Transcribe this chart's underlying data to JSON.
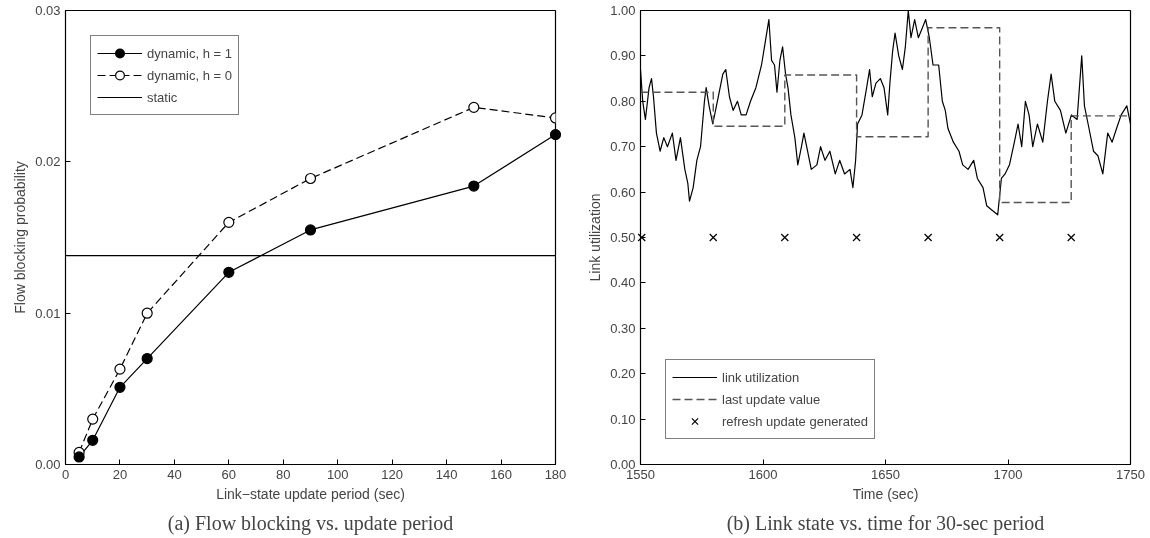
{
  "chart_data": [
    {
      "type": "line",
      "title": "(a) Flow blocking vs. update period",
      "xlabel": "Link−state update period (sec)",
      "ylabel": "Flow blocking probability",
      "x": [
        5,
        10,
        20,
        30,
        60,
        90,
        150,
        180
      ],
      "series": [
        {
          "name": "dynamic, h = 1",
          "color": "#000000",
          "marker": "circle",
          "line_style": "solid",
          "values": [
            0.0005,
            0.0016,
            0.0051,
            0.007,
            0.0127,
            0.0155,
            0.0184,
            0.0218
          ]
        },
        {
          "name": "dynamic, h = 0",
          "color": "#000000",
          "marker": "circle",
          "line_style": "dashed",
          "values": [
            0.0008,
            0.003,
            0.0063,
            0.01,
            0.016,
            0.0189,
            0.0236,
            0.0229
          ]
        },
        {
          "name": "static",
          "color": "#000000",
          "marker": "none",
          "line_style": "solid",
          "x": [
            0,
            180
          ],
          "values": [
            0.0138,
            0.0138
          ]
        }
      ],
      "xlim": [
        0,
        180
      ],
      "ylim": [
        0,
        0.03
      ],
      "xticks": [
        0,
        20,
        40,
        60,
        80,
        100,
        120,
        140,
        160,
        180
      ],
      "yticks": [
        {
          "value": 0,
          "label": "0.00"
        },
        {
          "value": 0.01,
          "label": "0.01"
        },
        {
          "value": 0.02,
          "label": "0.02"
        },
        {
          "value": 0.03,
          "label": "0.03"
        }
      ],
      "grid": false,
      "legend": "top left"
    },
    {
      "type": "line",
      "title": "(b) Link state vs. time for 30-sec period",
      "xlabel": "Time (sec)",
      "ylabel": "Link utilization",
      "series": [
        {
          "name": "link utilization",
          "color": "#000000",
          "marker": "none",
          "line_style": "solid",
          "x": [
            1550.0,
            1550.9,
            1552.0,
            1553.5,
            1554.5,
            1555.3,
            1556.5,
            1558.0,
            1559.5,
            1561.0,
            1563.0,
            1564.5,
            1566.3,
            1568.1,
            1569.3,
            1570.0,
            1571.5,
            1573.0,
            1574.5,
            1576.1,
            1576.8,
            1578.0,
            1579.5,
            1581.0,
            1582.5,
            1583.6,
            1584.8,
            1586.3,
            1587.8,
            1589.6,
            1591.1,
            1593.1,
            1594.9,
            1597.1,
            1599.4,
            1600.9,
            1602.4,
            1603.5,
            1604.7,
            1605.7,
            1606.9,
            1608.0,
            1609.2,
            1610.2,
            1611.4,
            1613.0,
            1614.2,
            1615.7,
            1616.7,
            1618.2,
            1619.7,
            1622.0,
            1623.5,
            1625.3,
            1627.3,
            1629.5,
            1631.3,
            1633.3,
            1635.5,
            1636.7,
            1637.8,
            1638.6,
            1640.4,
            1642.3,
            1643.5,
            1644.6,
            1646.1,
            1647.9,
            1649.4,
            1650.9,
            1651.8,
            1652.9,
            1653.9,
            1655.4,
            1656.9,
            1658.1,
            1659.3,
            1660.4,
            1661.9,
            1663.4,
            1664.9,
            1666.4,
            1667.9,
            1669.4,
            1671.7,
            1673.2,
            1674.4,
            1675.5,
            1677.7,
            1680.0,
            1681.5,
            1683.7,
            1686.0,
            1687.5,
            1689.8,
            1691.3,
            1693.5,
            1695.8,
            1697.3,
            1698.8,
            1700.6,
            1702.6,
            1704.1,
            1705.6,
            1707.1,
            1708.6,
            1710.1,
            1712.0,
            1714.2,
            1716.1,
            1717.6,
            1719.1,
            1721.4,
            1723.6,
            1725.9,
            1728.2,
            1730.1,
            1731.2,
            1732.7,
            1734.9,
            1736.7,
            1738.7,
            1740.7,
            1742.5,
            1744.3,
            1746.2,
            1748.5,
            1750.0
          ],
          "values": [
            0.87,
            0.8,
            0.76,
            0.83,
            0.85,
            0.81,
            0.73,
            0.69,
            0.72,
            0.7,
            0.73,
            0.67,
            0.72,
            0.65,
            0.62,
            0.58,
            0.61,
            0.67,
            0.7,
            0.8,
            0.83,
            0.79,
            0.75,
            0.79,
            0.83,
            0.86,
            0.87,
            0.81,
            0.78,
            0.8,
            0.77,
            0.77,
            0.8,
            0.83,
            0.88,
            0.93,
            0.98,
            0.89,
            0.88,
            0.82,
            0.89,
            0.92,
            0.86,
            0.83,
            0.77,
            0.72,
            0.66,
            0.7,
            0.73,
            0.69,
            0.65,
            0.66,
            0.7,
            0.67,
            0.69,
            0.64,
            0.67,
            0.64,
            0.65,
            0.61,
            0.67,
            0.75,
            0.77,
            0.83,
            0.87,
            0.81,
            0.84,
            0.85,
            0.83,
            0.77,
            0.84,
            0.91,
            0.95,
            0.9,
            0.87,
            0.92,
            1.0,
            0.94,
            0.98,
            0.94,
            0.96,
            0.98,
            0.94,
            0.88,
            0.88,
            0.8,
            0.78,
            0.74,
            0.71,
            0.69,
            0.66,
            0.65,
            0.67,
            0.63,
            0.61,
            0.57,
            0.56,
            0.55,
            0.63,
            0.64,
            0.66,
            0.71,
            0.75,
            0.7,
            0.8,
            0.77,
            0.7,
            0.75,
            0.71,
            0.8,
            0.86,
            0.8,
            0.78,
            0.73,
            0.77,
            0.76,
            0.9,
            0.79,
            0.75,
            0.69,
            0.68,
            0.64,
            0.73,
            0.71,
            0.74,
            0.77,
            0.79,
            0.75
          ]
        },
        {
          "name": "last update value",
          "type": "step",
          "color": "#555555",
          "marker": "none",
          "line_style": "dashed",
          "x": [
            1550,
            1579.7,
            1608.9,
            1638.2,
            1667.4,
            1696.6,
            1725.8,
            1750
          ],
          "values": [
            0.82,
            0.745,
            0.858,
            0.722,
            0.962,
            0.577,
            0.768,
            0.768
          ]
        },
        {
          "name": "refresh update generated",
          "type": "scatter",
          "color": "#000000",
          "marker": "cross",
          "x": [
            1550.5,
            1579.7,
            1608.9,
            1638.2,
            1667.4,
            1696.6,
            1725.8
          ],
          "values": [
            0.5,
            0.5,
            0.5,
            0.5,
            0.5,
            0.5,
            0.5
          ]
        }
      ],
      "xlim": [
        1550,
        1750
      ],
      "ylim": [
        0,
        1
      ],
      "xticks": [
        1550,
        1600,
        1650,
        1700,
        1750
      ],
      "yticks": [
        {
          "value": 0,
          "label": "0.00"
        },
        {
          "value": 0.1,
          "label": "0.10"
        },
        {
          "value": 0.2,
          "label": "0.20"
        },
        {
          "value": 0.3,
          "label": "0.30"
        },
        {
          "value": 0.4,
          "label": "0.40"
        },
        {
          "value": 0.5,
          "label": "0.50"
        },
        {
          "value": 0.6,
          "label": "0.60"
        },
        {
          "value": 0.7,
          "label": "0.70"
        },
        {
          "value": 0.8,
          "label": "0.80"
        },
        {
          "value": 0.9,
          "label": "0.90"
        },
        {
          "value": 1,
          "label": "1.00"
        }
      ],
      "grid": false,
      "legend": "bottom left"
    }
  ]
}
